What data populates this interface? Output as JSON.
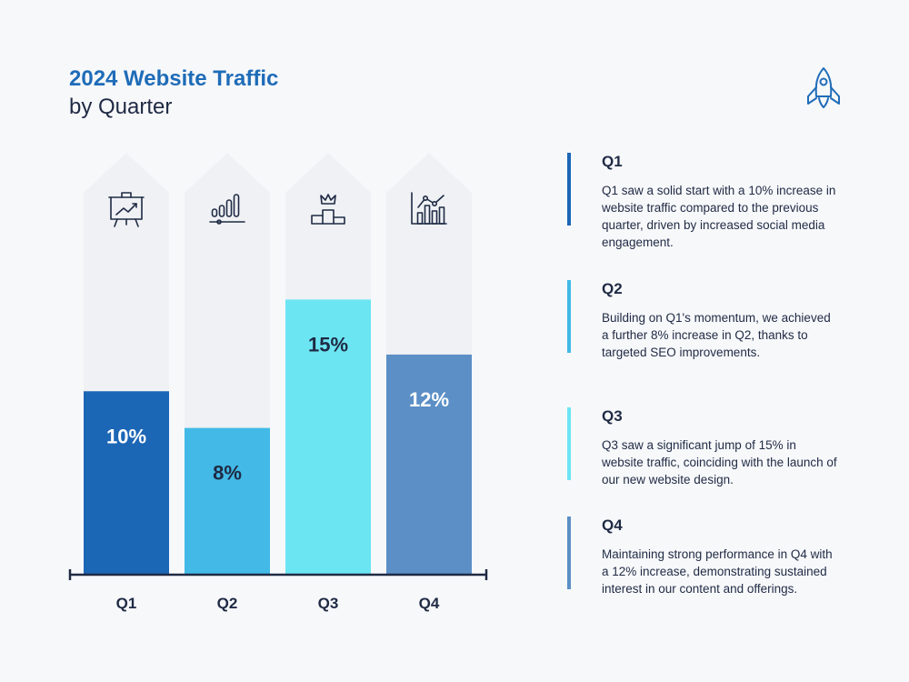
{
  "header": {
    "title": "2024 Website Traffic",
    "subtitle": "by Quarter",
    "logo_icon": "rocket-icon"
  },
  "colors": {
    "title": "#1f6cb8",
    "text": "#1f2a44",
    "track": "#eff1f4",
    "axis": "#1f2a44"
  },
  "chart_data": {
    "type": "bar",
    "categories": [
      "Q1",
      "Q2",
      "Q3",
      "Q4"
    ],
    "values": [
      10,
      8,
      15,
      12
    ],
    "value_labels": [
      "10%",
      "8%",
      "15%",
      "12%"
    ],
    "ylim": [
      0,
      23
    ],
    "bar_colors": [
      "#1c66b6",
      "#42b9e6",
      "#6ce5f3",
      "#5b8fc6"
    ],
    "label_colors": [
      "#ffffff",
      "#1f2a44",
      "#1f2a44",
      "#ffffff"
    ],
    "icons": [
      "presentation-chart-icon",
      "bar-chart-icon",
      "podium-crown-icon",
      "line-bar-chart-icon"
    ],
    "grid": false,
    "legend": "none"
  },
  "descriptions": [
    {
      "title": "Q1",
      "text": "Q1 saw a solid start with a 10% increase in website traffic compared to the previous quarter, driven by increased social media engagement.",
      "color": "#1c66b6"
    },
    {
      "title": "Q2",
      "text": "Building on Q1's momentum, we achieved a further 8% increase in Q2, thanks to targeted SEO improvements.",
      "color": "#42b9e6"
    },
    {
      "title": "Q3",
      "text": "Q3 saw a significant jump of 15% in website traffic, coinciding with the launch of our new website design.",
      "color": "#6ce5f3"
    },
    {
      "title": "Q4",
      "text": "Maintaining strong performance in Q4 with a 12% increase, demonstrating sustained interest in our content and offerings.",
      "color": "#5b8fc6"
    }
  ]
}
